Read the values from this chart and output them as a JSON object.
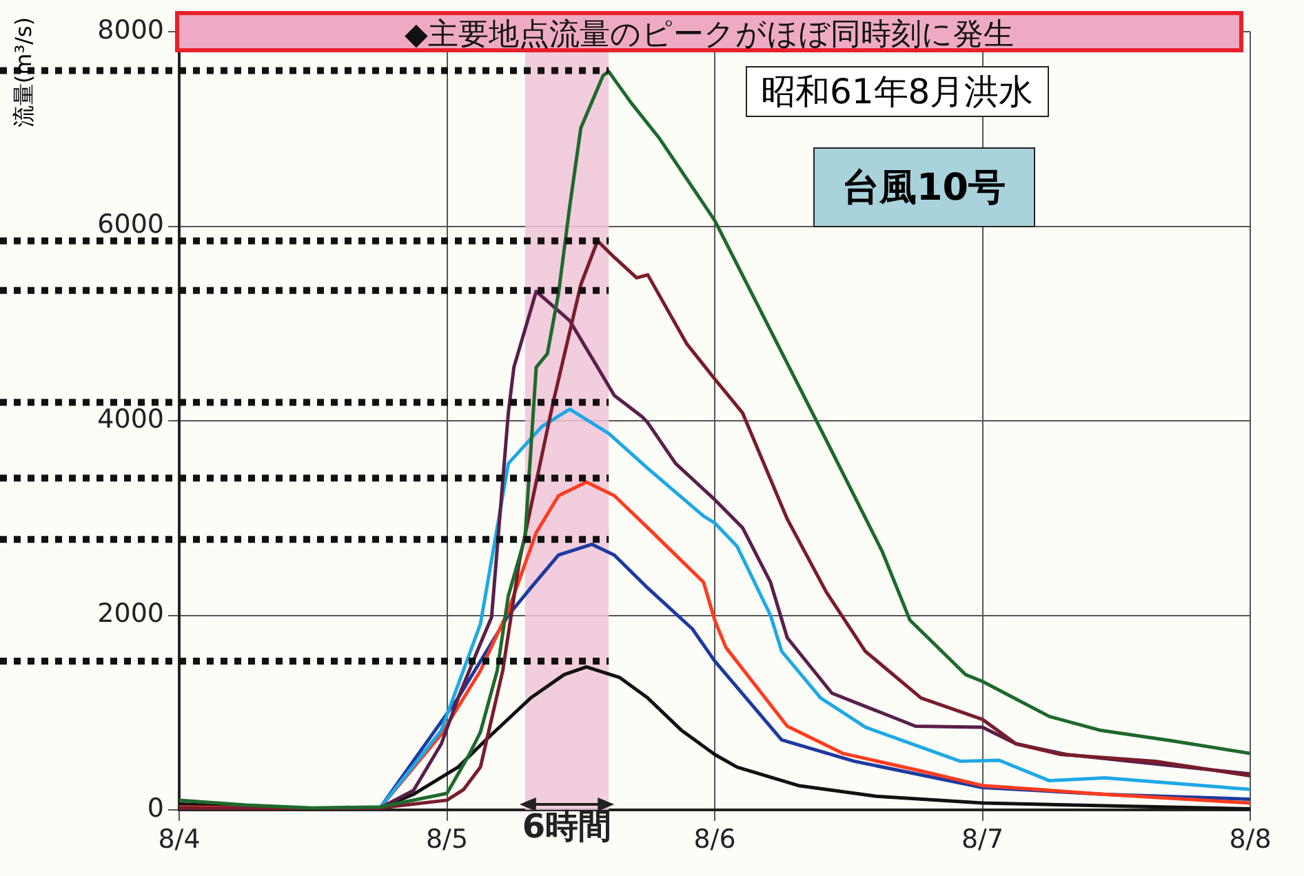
{
  "chart_data": {
    "type": "line",
    "title": "◆主要地点流量のピークがほぼ同時刻に発生",
    "ylabel": "流量(m³/s)",
    "annotations": [
      "昭和61年8月洪水",
      "台風10号"
    ],
    "xlim": [
      "--08-04",
      "--08-08"
    ],
    "xticks": [
      {
        "value": "--08-04",
        "label": "8/4"
      },
      {
        "value": "--08-05",
        "label": "8/5"
      },
      {
        "value": "--08-06",
        "label": "8/6"
      },
      {
        "value": "--08-07",
        "label": "8/7"
      },
      {
        "value": "--08-08",
        "label": "8/8"
      }
    ],
    "ylim": [
      0,
      8000
    ],
    "yticks": [
      0,
      2000,
      4000,
      6000,
      8000
    ],
    "grid": true,
    "legend": false,
    "marker": "none",
    "line_style": "solid",
    "ref_lines": [
      {
        "axis": "y",
        "value": 7600
      },
      {
        "axis": "y",
        "value": 5850
      },
      {
        "axis": "y",
        "value": 5340
      },
      {
        "axis": "y",
        "value": 4190
      },
      {
        "axis": "y",
        "value": 3410
      },
      {
        "axis": "y",
        "value": 2780
      },
      {
        "axis": "y",
        "value": 1530
      }
    ],
    "bands": [
      {
        "axis": "x",
        "from": "--08-05T07:00",
        "to": "--08-05T14:30",
        "label": "6時間",
        "color": "#f0c4d8"
      }
    ],
    "series": [
      {
        "color": "#1e6a2c",
        "x": [
          "--08-04T00:00",
          "--08-04T06:00",
          "--08-04T12:00",
          "--08-04T18:00",
          "--08-05T00:00",
          "--08-05T02:00",
          "--08-05T03:00",
          "--08-05T04:30",
          "--08-05T05:30",
          "--08-05T07:00",
          "--08-05T08:00",
          "--08-05T09:00",
          "--08-05T10:00",
          "--08-05T11:00",
          "--08-05T12:00",
          "--08-05T14:00",
          "--08-05T14:30",
          "--08-05T16:30",
          "--08-05T19:00",
          "--08-06T00:00",
          "--08-06T05:00",
          "--08-06T10:00",
          "--08-06T15:00",
          "--08-06T17:30",
          "--08-06T22:30",
          "--08-07T00:00",
          "--08-07T06:00",
          "--08-07T10:30",
          "--08-07T17:00",
          "--08-08T00:00"
        ],
        "values": [
          100,
          50,
          20,
          30,
          170,
          570,
          800,
          1430,
          2200,
          2800,
          4550,
          4690,
          5310,
          6200,
          7010,
          7550,
          7590,
          7270,
          6910,
          6060,
          4930,
          3800,
          2660,
          1950,
          1390,
          1320,
          960,
          820,
          710,
          580
        ]
      },
      {
        "color": "#7a1c2c",
        "x": [
          "--08-04T00:00",
          "--08-04T12:00",
          "--08-04T18:00",
          "--08-05T00:00",
          "--08-05T01:30",
          "--08-05T03:00",
          "--08-05T05:00",
          "--08-05T06:30",
          "--08-05T09:30",
          "--08-05T12:00",
          "--08-05T13:30",
          "--08-05T15:00",
          "--08-05T17:00",
          "--08-05T18:00",
          "--08-05T21:30",
          "--08-06T00:00",
          "--08-06T02:30",
          "--08-06T06:30",
          "--08-06T10:00",
          "--08-06T13:30",
          "--08-06T18:30",
          "--08-07T00:00",
          "--08-07T03:00",
          "--08-07T07:00",
          "--08-07T15:30",
          "--08-08T00:00"
        ],
        "values": [
          20,
          10,
          20,
          100,
          210,
          440,
          1430,
          2560,
          4180,
          5400,
          5850,
          5680,
          5470,
          5500,
          4790,
          4430,
          4080,
          2990,
          2240,
          1630,
          1150,
          930,
          680,
          570,
          500,
          350
        ]
      },
      {
        "color": "#5a1f4a",
        "x": [
          "--08-04T00:00",
          "--08-04T12:00",
          "--08-04T18:00",
          "--08-04T21:00",
          "--08-04T23:30",
          "--08-05T01:00",
          "--08-05T03:00",
          "--08-05T04:00",
          "--08-05T05:30",
          "--08-05T06:00",
          "--08-05T08:00",
          "--08-05T11:00",
          "--08-05T13:30",
          "--08-05T15:00",
          "--08-05T17:30",
          "--08-05T18:00",
          "--08-05T20:30",
          "--08-06T00:00",
          "--08-06T02:30",
          "--08-06T05:00",
          "--08-06T06:30",
          "--08-06T10:30",
          "--08-06T18:00",
          "--08-07T00:00",
          "--08-07T03:00",
          "--08-07T07:30",
          "--08-08T00:00"
        ],
        "values": [
          20,
          10,
          20,
          200,
          680,
          1150,
          1710,
          1980,
          4080,
          4550,
          5330,
          5030,
          4550,
          4260,
          4040,
          3980,
          3560,
          3190,
          2900,
          2340,
          1770,
          1200,
          860,
          850,
          680,
          570,
          370
        ]
      },
      {
        "color": "#1ea8e6",
        "x": [
          "--08-04T00:00",
          "--08-04T12:00",
          "--08-04T18:00",
          "--08-04T23:30",
          "--08-05T03:00",
          "--08-05T05:30",
          "--08-05T08:30",
          "--08-05T11:00",
          "--08-05T14:30",
          "--08-05T18:00",
          "--08-05T23:00",
          "--08-06T00:00",
          "--08-06T02:00",
          "--08-06T05:00",
          "--08-06T06:00",
          "--08-06T09:30",
          "--08-06T13:30",
          "--08-06T22:00",
          "--08-07T01:30",
          "--08-07T06:00",
          "--08-07T11:00",
          "--08-08T00:00"
        ],
        "values": [
          20,
          10,
          20,
          820,
          1910,
          3560,
          3940,
          4120,
          3870,
          3510,
          3020,
          2950,
          2710,
          2000,
          1630,
          1150,
          850,
          500,
          510,
          300,
          330,
          210
        ]
      },
      {
        "color": "#ff3c1e",
        "x": [
          "--08-04T00:00",
          "--08-04T12:00",
          "--08-04T18:00",
          "--08-04T23:30",
          "--08-05T03:00",
          "--08-05T05:30",
          "--08-05T08:00",
          "--08-05T10:00",
          "--08-05T12:30",
          "--08-05T15:00",
          "--08-05T18:00",
          "--08-05T23:00",
          "--08-06T00:00",
          "--08-06T01:00",
          "--08-06T06:30",
          "--08-06T11:30",
          "--08-06T18:30",
          "--08-07T00:00",
          "--08-07T11:00",
          "--08-08T00:00"
        ],
        "values": [
          30,
          10,
          20,
          780,
          1430,
          2050,
          2850,
          3230,
          3370,
          3230,
          2900,
          2340,
          1950,
          1670,
          860,
          580,
          400,
          250,
          160,
          70
        ]
      },
      {
        "color": "#1c3aa0",
        "x": [
          "--08-04T00:00",
          "--08-04T12:00",
          "--08-04T18:00",
          "--08-05T01:00",
          "--08-05T05:30",
          "--08-05T07:30",
          "--08-05T10:00",
          "--08-05T13:00",
          "--08-05T15:00",
          "--08-05T18:00",
          "--08-05T22:00",
          "--08-06T00:00",
          "--08-06T06:00",
          "--08-06T12:30",
          "--08-07T00:00",
          "--08-07T11:00",
          "--08-08T00:00"
        ],
        "values": [
          20,
          10,
          20,
          1150,
          2000,
          2280,
          2620,
          2730,
          2620,
          2280,
          1860,
          1530,
          720,
          500,
          230,
          160,
          110
        ]
      },
      {
        "color": "#111111",
        "x": [
          "--08-04T00:00",
          "--08-04T12:00",
          "--08-04T18:00",
          "--08-04T21:00",
          "--08-05T01:00",
          "--08-05T03:30",
          "--08-05T07:30",
          "--08-05T10:30",
          "--08-05T12:30",
          "--08-05T15:30",
          "--08-05T18:00",
          "--08-05T21:00",
          "--08-06T00:00",
          "--08-06T02:00",
          "--08-06T07:30",
          "--08-06T14:30",
          "--08-07T00:00",
          "--08-08T00:00"
        ],
        "values": [
          60,
          10,
          20,
          160,
          440,
          720,
          1150,
          1390,
          1470,
          1360,
          1150,
          820,
          570,
          440,
          250,
          140,
          70,
          10
        ]
      }
    ]
  }
}
